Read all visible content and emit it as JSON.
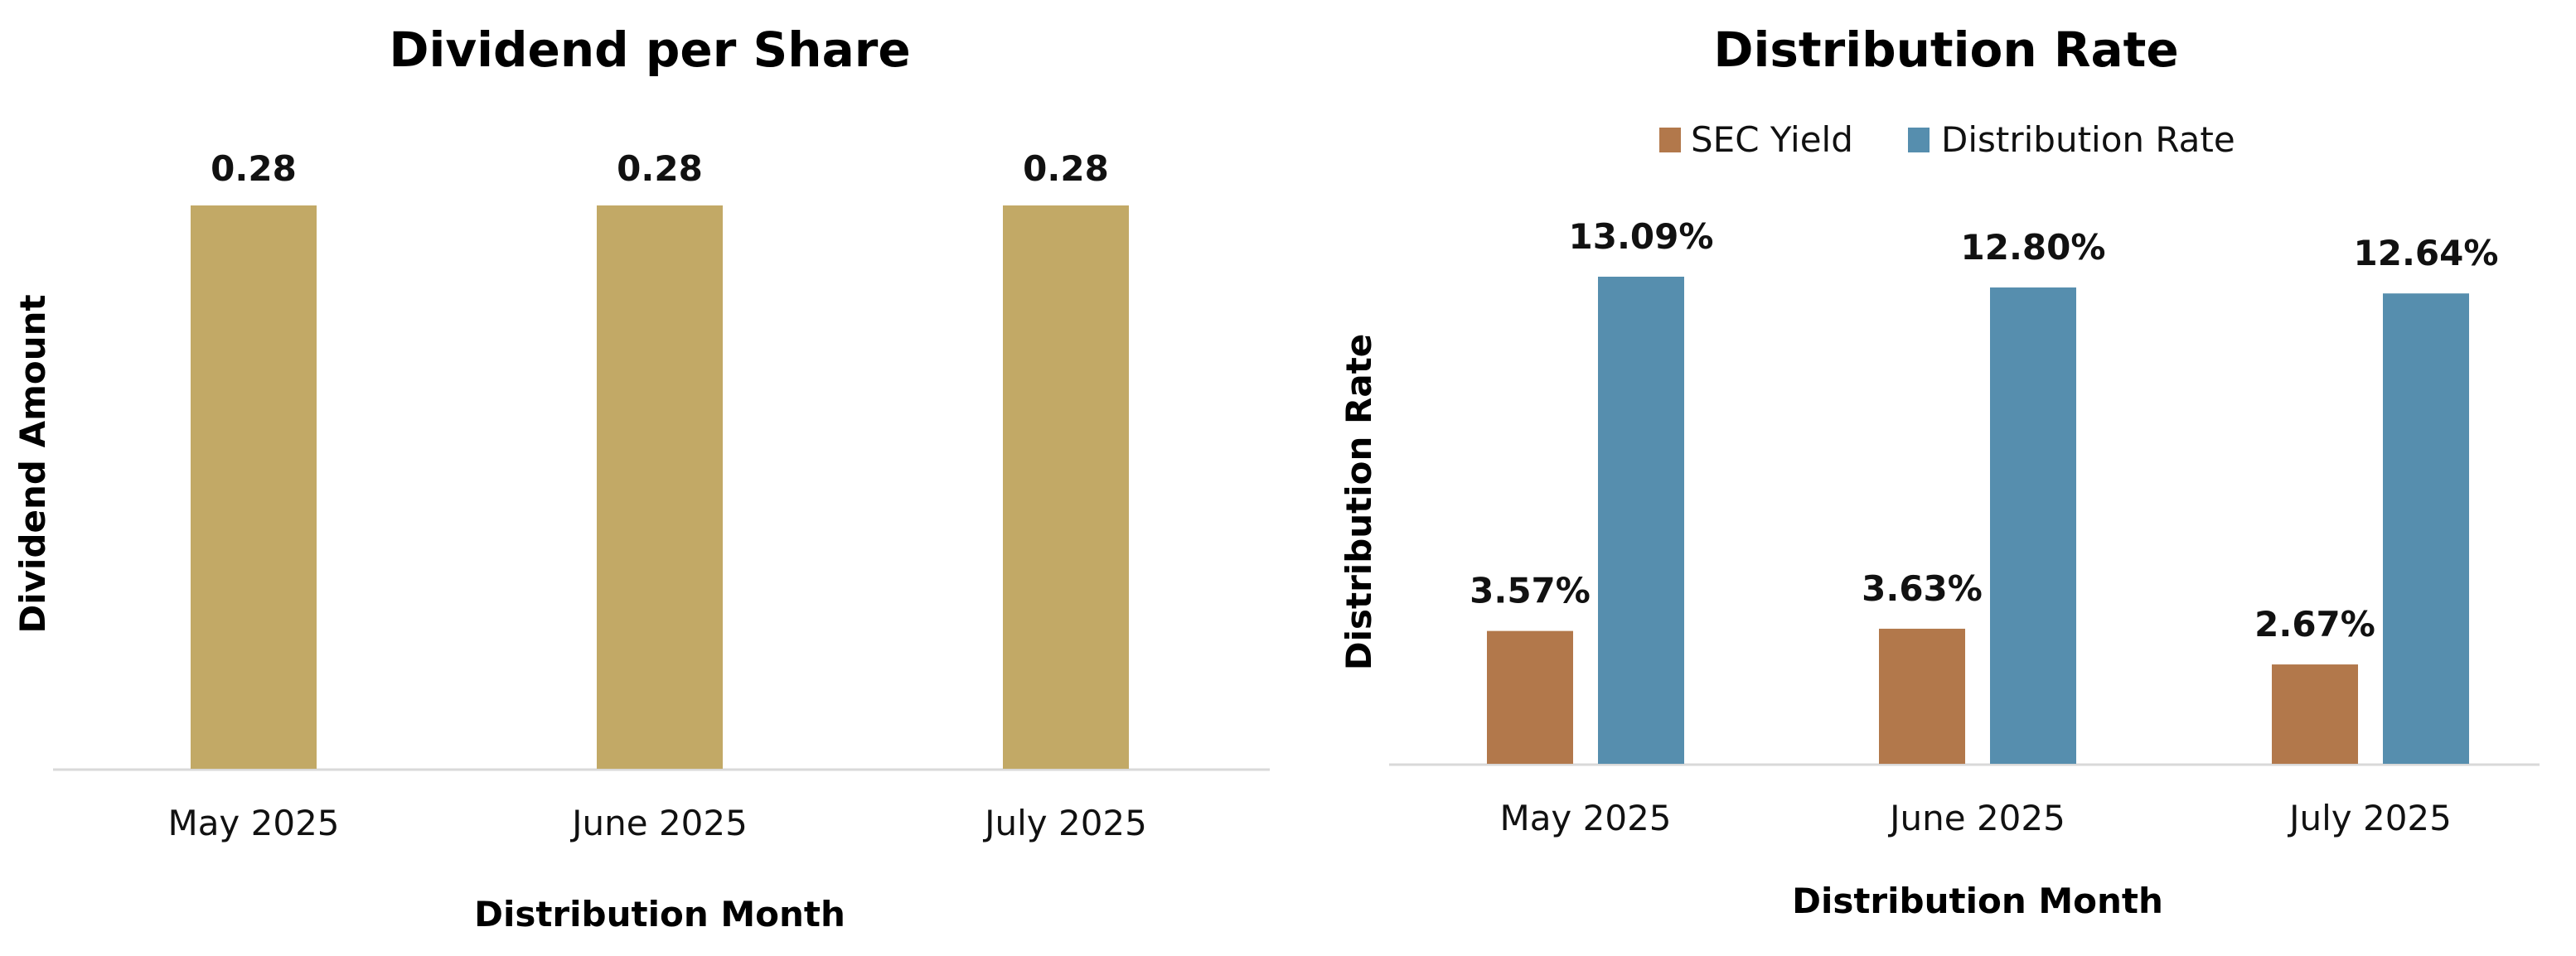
{
  "chart_data": [
    {
      "type": "bar",
      "title": "Dividend per Share",
      "xlabel": "Distribution Month",
      "ylabel": "Dividend Amount",
      "categories": [
        "May 2025",
        "June 2025",
        "July 2025"
      ],
      "values": [
        0.28,
        0.28,
        0.28
      ],
      "data_labels": [
        "0.28",
        "0.28",
        "0.28"
      ],
      "ylim": [
        0,
        0.28
      ],
      "grid": false,
      "color": "#C2A966"
    },
    {
      "type": "bar",
      "title": "Distribution Rate",
      "xlabel": "Distribution Month",
      "ylabel": "Distribution Rate",
      "categories": [
        "May 2025",
        "June 2025",
        "July 2025"
      ],
      "legend_position": "top",
      "grid": false,
      "ylim": [
        0,
        13.09
      ],
      "series": [
        {
          "name": "SEC Yield",
          "values": [
            3.57,
            3.63,
            2.67
          ],
          "data_labels": [
            "3.57%",
            "3.63%",
            "2.67%"
          ],
          "color": "#B2784B"
        },
        {
          "name": "Distribution Rate",
          "values": [
            13.09,
            12.8,
            12.64
          ],
          "data_labels": [
            "13.09%",
            "12.80%",
            "12.64%"
          ],
          "color": "#568EAE"
        }
      ]
    }
  ]
}
